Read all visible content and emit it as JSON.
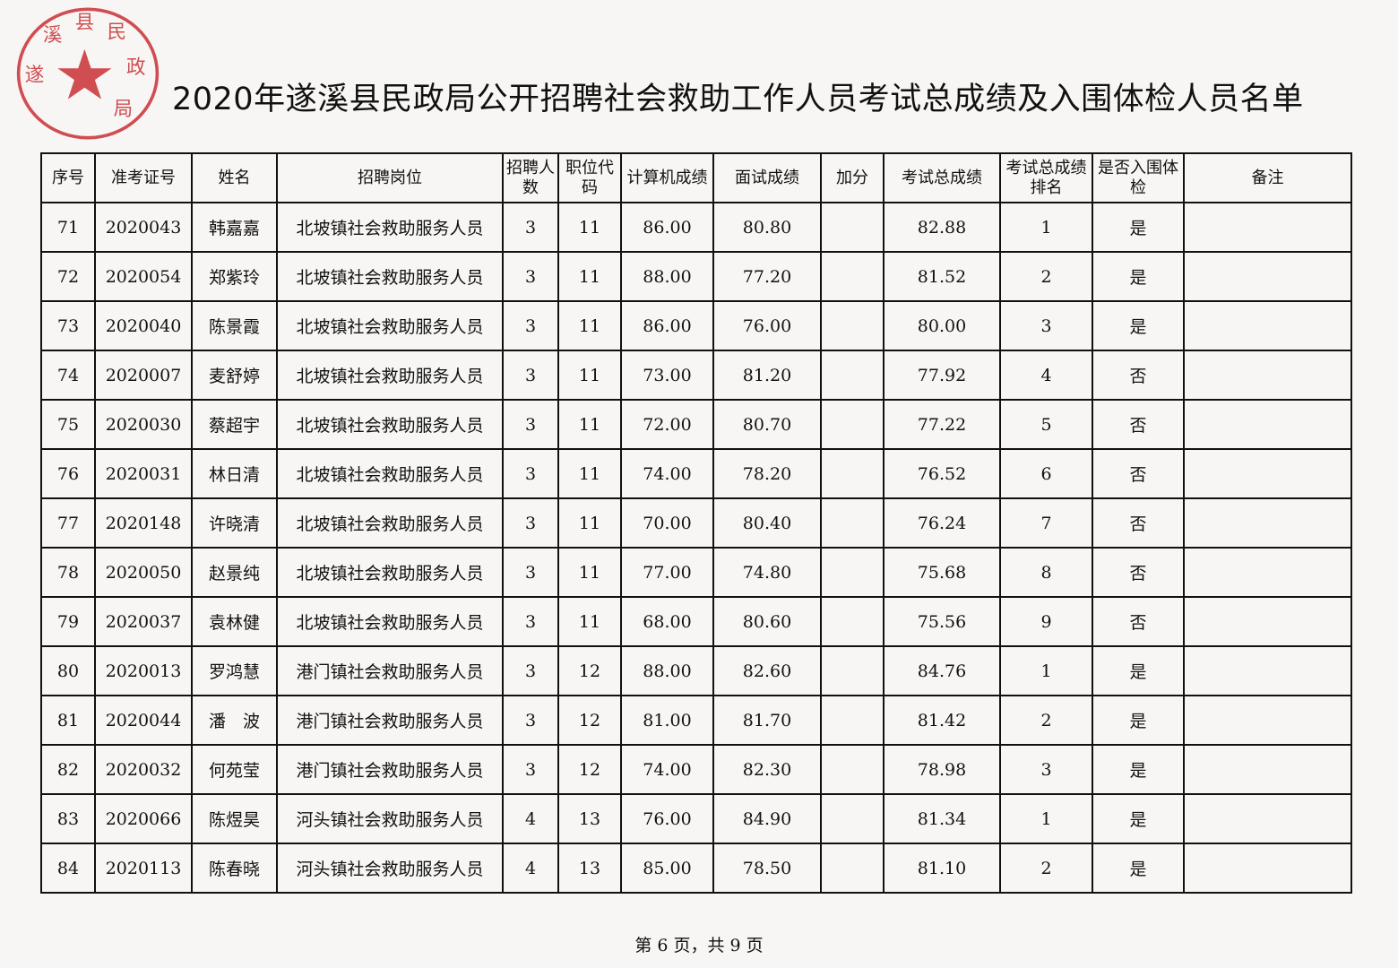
{
  "title": "2020年遂溪县民政局公开招聘社会救助工作人员考试总成绩及入围体检人员名单",
  "stamp": {
    "text": "遂溪县民政局",
    "color": "#c8282e"
  },
  "columns": [
    "序号",
    "准考证号",
    "姓名",
    "招聘岗位",
    "招聘人数",
    "职位代码",
    "计算机成绩",
    "面试成绩",
    "加分",
    "考试总成绩",
    "考试总成绩排名",
    "是否入围体检",
    "备注"
  ],
  "rows": [
    [
      "71",
      "2020043",
      "韩嘉嘉",
      "北坡镇社会救助服务人员",
      "3",
      "11",
      "86.00",
      "80.80",
      "",
      "82.88",
      "1",
      "是",
      ""
    ],
    [
      "72",
      "2020054",
      "郑紫玲",
      "北坡镇社会救助服务人员",
      "3",
      "11",
      "88.00",
      "77.20",
      "",
      "81.52",
      "2",
      "是",
      ""
    ],
    [
      "73",
      "2020040",
      "陈景霞",
      "北坡镇社会救助服务人员",
      "3",
      "11",
      "86.00",
      "76.00",
      "",
      "80.00",
      "3",
      "是",
      ""
    ],
    [
      "74",
      "2020007",
      "麦舒婷",
      "北坡镇社会救助服务人员",
      "3",
      "11",
      "73.00",
      "81.20",
      "",
      "77.92",
      "4",
      "否",
      ""
    ],
    [
      "75",
      "2020030",
      "蔡超宇",
      "北坡镇社会救助服务人员",
      "3",
      "11",
      "72.00",
      "80.70",
      "",
      "77.22",
      "5",
      "否",
      ""
    ],
    [
      "76",
      "2020031",
      "林日清",
      "北坡镇社会救助服务人员",
      "3",
      "11",
      "74.00",
      "78.20",
      "",
      "76.52",
      "6",
      "否",
      ""
    ],
    [
      "77",
      "2020148",
      "许晓清",
      "北坡镇社会救助服务人员",
      "3",
      "11",
      "70.00",
      "80.40",
      "",
      "76.24",
      "7",
      "否",
      ""
    ],
    [
      "78",
      "2020050",
      "赵景纯",
      "北坡镇社会救助服务人员",
      "3",
      "11",
      "77.00",
      "74.80",
      "",
      "75.68",
      "8",
      "否",
      ""
    ],
    [
      "79",
      "2020037",
      "袁林健",
      "北坡镇社会救助服务人员",
      "3",
      "11",
      "68.00",
      "80.60",
      "",
      "75.56",
      "9",
      "否",
      ""
    ],
    [
      "80",
      "2020013",
      "罗鸿慧",
      "港门镇社会救助服务人员",
      "3",
      "12",
      "88.00",
      "82.60",
      "",
      "84.76",
      "1",
      "是",
      ""
    ],
    [
      "81",
      "2020044",
      "潘　波",
      "港门镇社会救助服务人员",
      "3",
      "12",
      "81.00",
      "81.70",
      "",
      "81.42",
      "2",
      "是",
      ""
    ],
    [
      "82",
      "2020032",
      "何苑莹",
      "港门镇社会救助服务人员",
      "3",
      "12",
      "74.00",
      "82.30",
      "",
      "78.98",
      "3",
      "是",
      ""
    ],
    [
      "83",
      "2020066",
      "陈煜昊",
      "河头镇社会救助服务人员",
      "4",
      "13",
      "76.00",
      "84.90",
      "",
      "81.34",
      "1",
      "是",
      ""
    ],
    [
      "84",
      "2020113",
      "陈春晓",
      "河头镇社会救助服务人员",
      "4",
      "13",
      "85.00",
      "78.50",
      "",
      "81.10",
      "2",
      "是",
      ""
    ]
  ],
  "footer": "第 6 页，共 9 页"
}
